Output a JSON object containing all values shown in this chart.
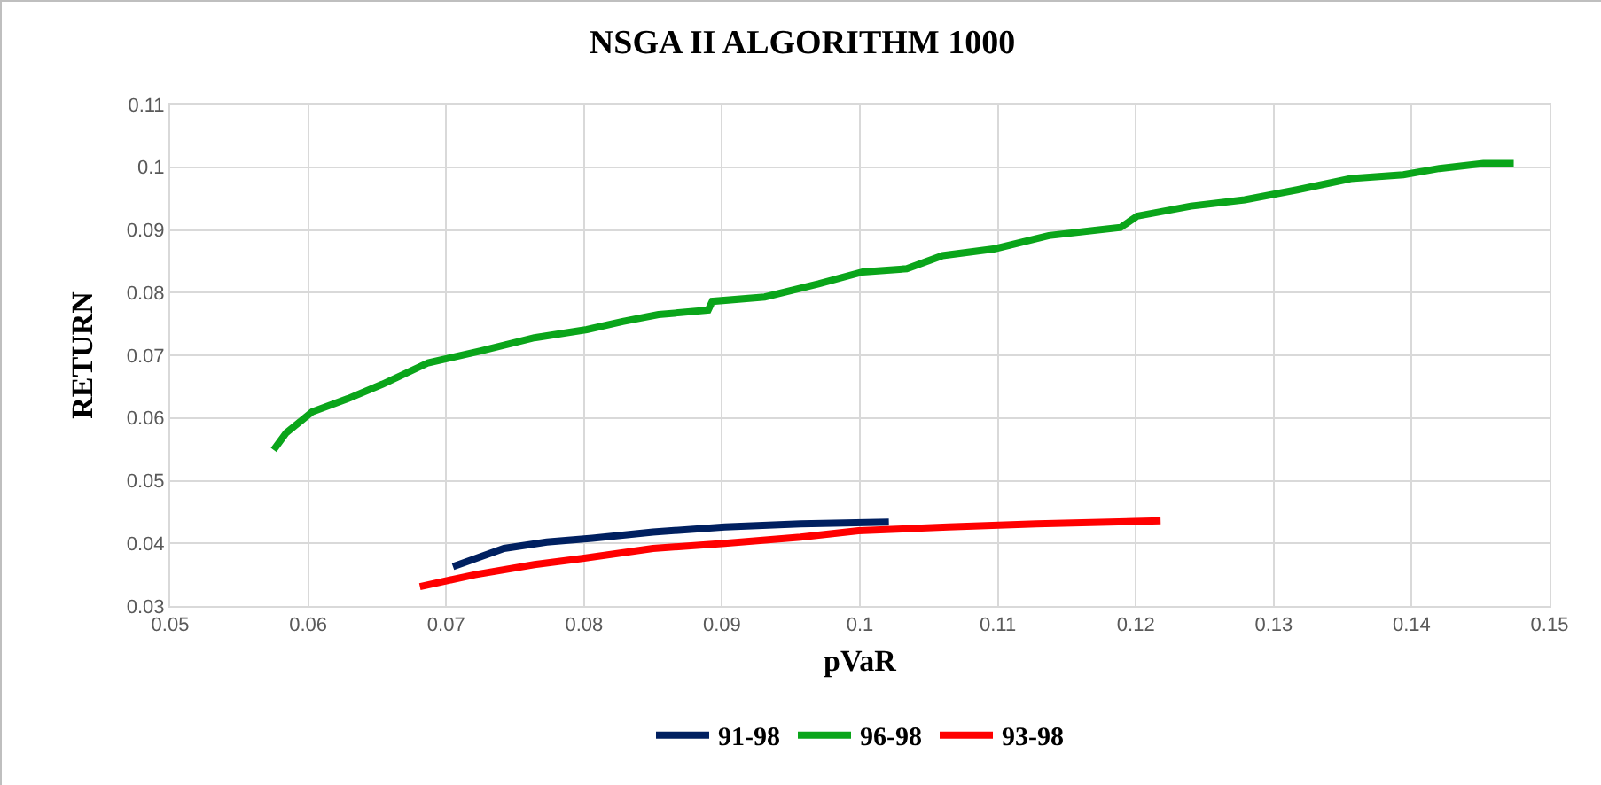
{
  "chart_data": {
    "type": "line",
    "title": "NSGA II ALGORITHM 1000",
    "xlabel": "pVaR",
    "ylabel": "RETURN",
    "xlim": [
      0.05,
      0.15
    ],
    "xticks": [
      0.05,
      0.06,
      0.07,
      0.08,
      0.09,
      0.1,
      0.11,
      0.12,
      0.13,
      0.14,
      0.15
    ],
    "ylim": [
      0.03,
      0.11
    ],
    "yticks": [
      0.03,
      0.04,
      0.05,
      0.06,
      0.07,
      0.08,
      0.09,
      0.1,
      0.11
    ],
    "grid": true,
    "legend": "bottom",
    "marker": "none",
    "line_style": "solid",
    "series": [
      {
        "name": "91-98",
        "color": "#002060",
        "x": [
          0.0705,
          0.0742,
          0.0773,
          0.0806,
          0.085,
          0.0902,
          0.0957,
          0.1021
        ],
        "values": [
          0.0363,
          0.0392,
          0.0402,
          0.0408,
          0.0418,
          0.0426,
          0.0431,
          0.0434
        ]
      },
      {
        "name": "96-98",
        "color": "#0aa51a",
        "x": [
          0.0575,
          0.0584,
          0.0603,
          0.0629,
          0.0654,
          0.0687,
          0.0725,
          0.0764,
          0.0802,
          0.0828,
          0.0854,
          0.089,
          0.0893,
          0.0931,
          0.097,
          0.1002,
          0.1034,
          0.106,
          0.1098,
          0.1137,
          0.1189,
          0.1201,
          0.124,
          0.1279,
          0.1317,
          0.1356,
          0.1394,
          0.142,
          0.1452,
          0.1474
        ],
        "values": [
          0.0549,
          0.0576,
          0.061,
          0.0631,
          0.0654,
          0.0688,
          0.0707,
          0.0728,
          0.0741,
          0.0754,
          0.0765,
          0.0772,
          0.0786,
          0.0793,
          0.0814,
          0.0833,
          0.0838,
          0.0859,
          0.087,
          0.0891,
          0.0904,
          0.0922,
          0.0938,
          0.0948,
          0.0964,
          0.0982,
          0.0988,
          0.0998,
          0.1006,
          0.1006
        ]
      },
      {
        "name": "93-98",
        "color": "#ff0000",
        "x": [
          0.0681,
          0.0721,
          0.0764,
          0.0799,
          0.085,
          0.0902,
          0.0957,
          0.0999,
          0.1064,
          0.1128,
          0.1218
        ],
        "values": [
          0.0331,
          0.035,
          0.0366,
          0.0376,
          0.0392,
          0.04,
          0.041,
          0.042,
          0.0426,
          0.0431,
          0.0436
        ]
      }
    ]
  }
}
